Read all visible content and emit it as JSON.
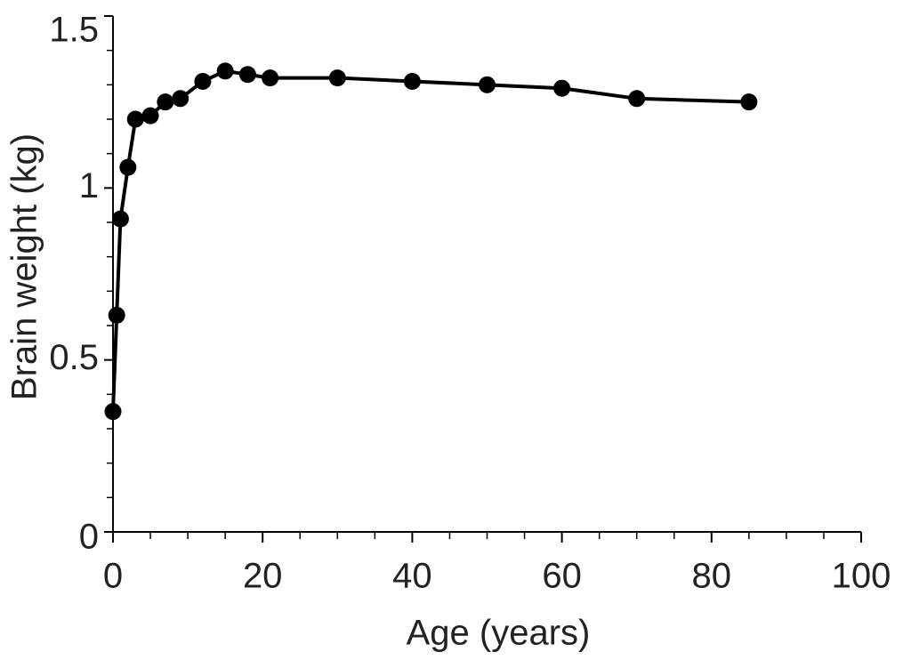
{
  "chart_data": {
    "type": "line",
    "x_label": "Age (years)",
    "y_label": "Brain weight (kg)",
    "x": [
      0,
      0.5,
      1,
      2,
      3,
      5,
      7,
      9,
      12,
      15,
      18,
      21,
      30,
      40,
      50,
      60,
      70,
      85
    ],
    "series": [
      {
        "color": "#000000",
        "values": [
          0.35,
          0.63,
          0.91,
          1.06,
          1.2,
          1.21,
          1.25,
          1.26,
          1.31,
          1.34,
          1.33,
          1.32,
          1.32,
          1.31,
          1.3,
          1.29,
          1.26,
          1.25
        ]
      }
    ],
    "xlim": [
      0,
      100
    ],
    "xticks": [
      0,
      20,
      40,
      60,
      80,
      100
    ],
    "xminorticks": [
      5,
      10,
      15,
      25,
      30,
      35,
      45,
      50,
      55,
      65,
      70,
      75,
      85,
      90,
      95
    ],
    "ylim": [
      0,
      1.5
    ],
    "yticks": [
      0,
      0.5,
      1,
      1.5
    ],
    "yminorticks": [
      0.1,
      0.2,
      0.3,
      0.4,
      0.6,
      0.7,
      0.8,
      0.9,
      1.1,
      1.2,
      1.3,
      1.4
    ]
  }
}
